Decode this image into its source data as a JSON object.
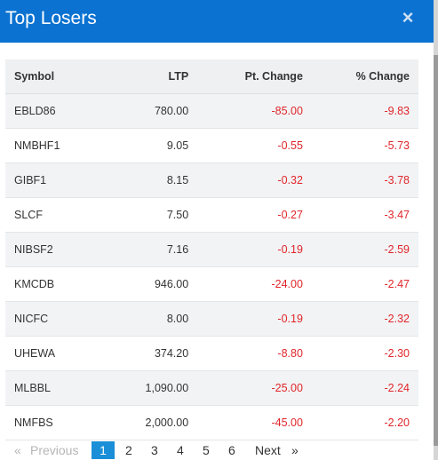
{
  "modal": {
    "title": "Top Losers",
    "close_glyph": "×"
  },
  "table": {
    "headers": {
      "symbol": "Symbol",
      "ltp": "LTP",
      "pt_change": "Pt. Change",
      "pct_change": "% Change"
    },
    "rows": [
      {
        "symbol": "EBLD86",
        "ltp": "780.00",
        "pt_change": "-85.00",
        "pct_change": "-9.83"
      },
      {
        "symbol": "NMBHF1",
        "ltp": "9.05",
        "pt_change": "-0.55",
        "pct_change": "-5.73"
      },
      {
        "symbol": "GIBF1",
        "ltp": "8.15",
        "pt_change": "-0.32",
        "pct_change": "-3.78"
      },
      {
        "symbol": "SLCF",
        "ltp": "7.50",
        "pt_change": "-0.27",
        "pct_change": "-3.47"
      },
      {
        "symbol": "NIBSF2",
        "ltp": "7.16",
        "pt_change": "-0.19",
        "pct_change": "-2.59"
      },
      {
        "symbol": "KMCDB",
        "ltp": "946.00",
        "pt_change": "-24.00",
        "pct_change": "-2.47"
      },
      {
        "symbol": "NICFC",
        "ltp": "8.00",
        "pt_change": "-0.19",
        "pct_change": "-2.32"
      },
      {
        "symbol": "UHEWA",
        "ltp": "374.20",
        "pt_change": "-8.80",
        "pct_change": "-2.30"
      },
      {
        "symbol": "MLBBL",
        "ltp": "1,090.00",
        "pt_change": "-25.00",
        "pct_change": "-2.24"
      },
      {
        "symbol": "NMFBS",
        "ltp": "2,000.00",
        "pt_change": "-45.00",
        "pct_change": "-2.20"
      }
    ]
  },
  "pagination": {
    "first": "«",
    "previous": "Previous",
    "pages": [
      "1",
      "2",
      "3",
      "4",
      "5",
      "6"
    ],
    "active_page": "1",
    "next": "Next",
    "last": "»"
  },
  "colors": {
    "header_bg": "#0b72d1",
    "negative": "#e0262b",
    "active_page": "#1a8fd8",
    "row_alt": "#f2f3f5"
  }
}
